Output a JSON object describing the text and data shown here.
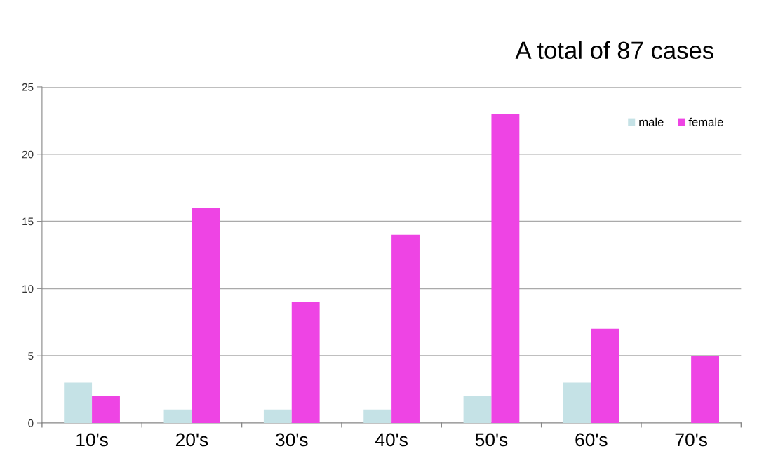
{
  "chart_data": {
    "type": "bar",
    "title": "A total of 87 cases",
    "categories": [
      "10's",
      "20's",
      "30's",
      "40's",
      "50's",
      "60's",
      "70's"
    ],
    "series": [
      {
        "name": "male",
        "color": "#c5e2e6",
        "values": [
          3,
          1,
          1,
          1,
          2,
          3,
          0
        ]
      },
      {
        "name": "female",
        "color": "#ee44e4",
        "values": [
          2,
          16,
          9,
          14,
          23,
          7,
          5
        ]
      }
    ],
    "ylim": [
      0,
      25
    ],
    "yticks": [
      0,
      5,
      10,
      15,
      20,
      25
    ],
    "grid": "y",
    "legend": "top right"
  }
}
